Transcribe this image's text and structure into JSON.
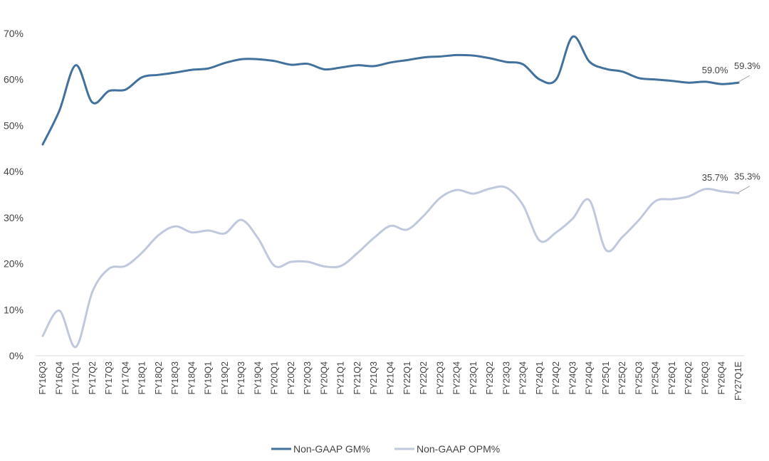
{
  "chart_data": {
    "type": "line",
    "title": "",
    "xlabel": "",
    "ylabel": "",
    "ylim": [
      0,
      70
    ],
    "yticks": [
      "0%",
      "10%",
      "20%",
      "30%",
      "40%",
      "50%",
      "60%",
      "70%"
    ],
    "grid": false,
    "legend_position": "bottom-center",
    "categories": [
      "FY16Q3",
      "FY16Q4",
      "FY17Q1",
      "FY17Q2",
      "FY17Q3",
      "FY17Q4",
      "FY18Q1",
      "FY18Q2",
      "FY18Q3",
      "FY18Q4",
      "FY19Q1",
      "FY19Q2",
      "FY19Q3",
      "FY19Q4",
      "FY20Q1",
      "FY20Q2",
      "FY20Q3",
      "FY20Q4",
      "FY21Q1",
      "FY21Q2",
      "FY21Q3",
      "FY21Q4",
      "FY22Q1",
      "FY22Q2",
      "FY22Q3",
      "FY22Q4",
      "FY23Q1",
      "FY23Q2",
      "FY23Q3",
      "FY23Q4",
      "FY24Q1",
      "FY24Q2",
      "FY24Q3",
      "FY24Q4",
      "FY25Q1",
      "FY25Q2",
      "FY25Q3",
      "FY25Q4",
      "FY26Q1",
      "FY26Q2",
      "FY26Q3",
      "FY26Q4",
      "FY27Q1E"
    ],
    "series": [
      {
        "name": "Non-GAAP GM%",
        "color": "#41719c",
        "values": [
          45.9,
          53.2,
          63.1,
          55.0,
          57.5,
          57.8,
          60.5,
          61.0,
          61.5,
          62.1,
          62.4,
          63.6,
          64.4,
          64.4,
          64.0,
          63.2,
          63.4,
          62.2,
          62.6,
          63.1,
          62.9,
          63.7,
          64.2,
          64.8,
          65.0,
          65.3,
          65.2,
          64.6,
          63.8,
          63.3,
          60.0,
          60.0,
          69.3,
          63.9,
          62.3,
          61.7,
          60.3,
          60.0,
          59.7,
          59.3,
          59.5,
          59.0,
          59.3
        ],
        "labels": [
          {
            "index": 41,
            "text": "59.0%"
          },
          {
            "index": 42,
            "text": "59.3%"
          }
        ]
      },
      {
        "name": "Non-GAAP OPM%",
        "color": "#bfc8dc",
        "values": [
          4.3,
          9.8,
          1.9,
          13.9,
          18.9,
          19.5,
          22.4,
          26.2,
          28.1,
          26.8,
          27.2,
          26.6,
          29.5,
          25.5,
          19.5,
          20.4,
          20.4,
          19.4,
          19.5,
          22.3,
          25.6,
          28.2,
          27.4,
          30.4,
          34.3,
          36.0,
          35.2,
          36.3,
          36.5,
          32.7,
          25.0,
          26.8,
          29.8,
          33.8,
          23.0,
          25.8,
          29.5,
          33.6,
          34.0,
          34.6,
          36.2,
          35.7,
          35.3
        ],
        "labels": [
          {
            "index": 41,
            "text": "35.7%"
          },
          {
            "index": 42,
            "text": "35.3%"
          }
        ]
      }
    ]
  }
}
